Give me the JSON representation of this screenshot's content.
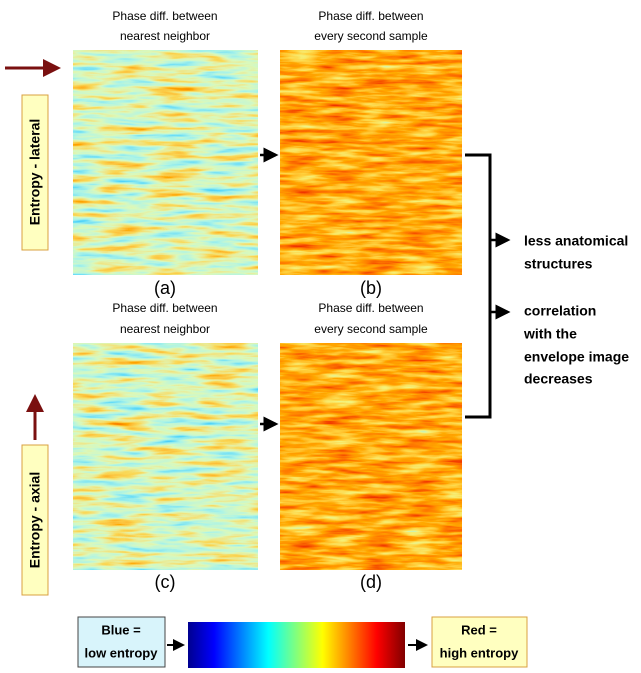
{
  "panels": [
    {
      "title": [
        "Phase diff. between",
        "nearest neighbor"
      ],
      "label": "(a)"
    },
    {
      "title": [
        "Phase diff. between",
        "every second sample"
      ],
      "label": "(b)"
    },
    {
      "title": [
        "Phase diff. between",
        "nearest neighbor"
      ],
      "label": "(c)"
    },
    {
      "title": [
        "Phase diff. between",
        "every second sample"
      ],
      "label": "(d)"
    }
  ],
  "row_labels": [
    "Entropy - lateral",
    "Entropy - axial"
  ],
  "bullets": [
    [
      "less anatomical",
      "structures"
    ],
    [
      "correlation",
      "with the",
      "envelope image",
      "decreases"
    ]
  ],
  "legend": {
    "low": [
      "Blue =",
      "low entropy"
    ],
    "high": [
      "Red =",
      "high entropy"
    ]
  }
}
